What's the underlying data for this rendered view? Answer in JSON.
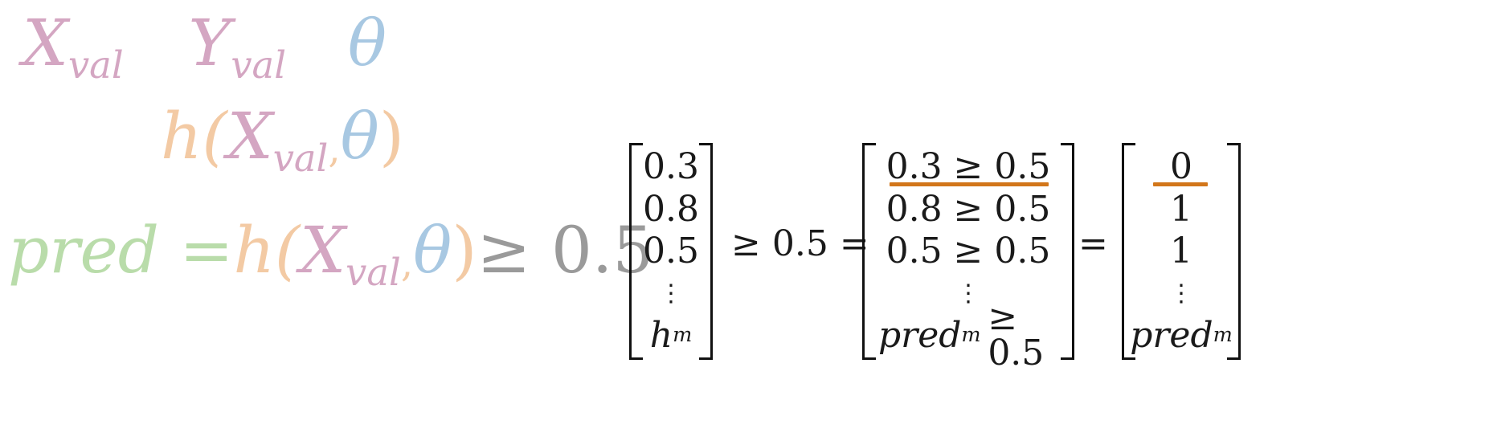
{
  "colors": {
    "x_color": "#d4a6c2",
    "y_color": "#d4a6c2",
    "theta_color": "#a8c8e2",
    "h_color": "#f3caa4",
    "pred_color": "#b9dcaa",
    "const_color": "#9a9a9a",
    "highlight": "#d2761a"
  },
  "left": {
    "line1": {
      "x": "X",
      "x_sub": "val",
      "y": "Y",
      "y_sub": "val",
      "theta": "θ"
    },
    "line2": {
      "h": "h(",
      "x": "X",
      "x_sub": "val",
      "comma": ",",
      "theta": "θ",
      "close": ")"
    },
    "line3": {
      "pred": "pred",
      "eq": "=",
      "h": "h(",
      "x": "X",
      "x_sub": "val",
      "comma": ",",
      "theta": "θ",
      "close": ")",
      "geq": "≥ 0.5"
    }
  },
  "matrix_h": [
    "0.3",
    "0.8",
    "0.5",
    "⋮",
    "h",
    "m"
  ],
  "op1": "≥ 0.5 =",
  "matrix_cmp": [
    "0.3 ≥ 0.5",
    "0.8 ≥ 0.5",
    "0.5 ≥ 0.5",
    "⋮",
    "pred",
    "m",
    "≥ 0.5"
  ],
  "op2": "=",
  "matrix_pred": [
    "0",
    "1",
    "1",
    "⋮",
    "pred",
    "m"
  ]
}
